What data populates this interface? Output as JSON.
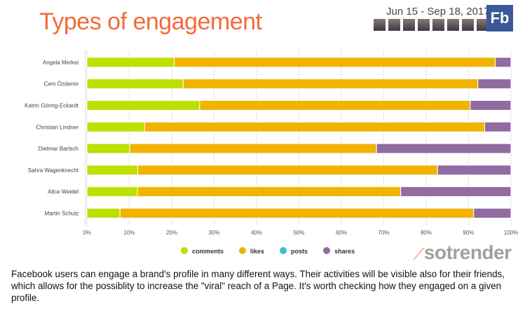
{
  "header": {
    "title": "Types of engagement",
    "date_range": "Jun 15 - Sep 18, 2017",
    "platform_badge": "Fb"
  },
  "colors": {
    "comments": "#bfdf00",
    "likes": "#f0b400",
    "posts": "#3fbfc9",
    "shares": "#916ba1",
    "title": "#f26b3a"
  },
  "chart_data": {
    "type": "bar",
    "orientation": "horizontal",
    "stacked": "percent",
    "categories": [
      "Angela Merkel",
      "Cem Özdemir",
      "Katrin Göring-Eckardt",
      "Christian Lindner",
      "Dietmar Bartsch",
      "Sahra Wagenknecht",
      "Alice Weidel",
      "Martin Schulz"
    ],
    "series": [
      {
        "name": "comments",
        "values": [
          20.6,
          22.7,
          26.6,
          13.6,
          10.1,
          12.0,
          11.9,
          7.8
        ]
      },
      {
        "name": "likes",
        "values": [
          75.7,
          69.5,
          63.8,
          80.2,
          58.2,
          70.7,
          62.1,
          83.4
        ]
      },
      {
        "name": "posts",
        "values": [
          0,
          0,
          0,
          0,
          0,
          0,
          0,
          0
        ]
      },
      {
        "name": "shares",
        "values": [
          3.7,
          7.8,
          9.6,
          6.2,
          31.7,
          17.3,
          26.0,
          8.8
        ]
      }
    ],
    "xticks": [
      "0%",
      "10%",
      "20%",
      "30%",
      "40%",
      "50%",
      "60%",
      "70%",
      "80%",
      "90%",
      "100%"
    ],
    "xlim": [
      0,
      100
    ],
    "grid": true,
    "legend": "bottom"
  },
  "logo": {
    "text": "sotrender"
  },
  "description": "Facebook users can engage a brand's profile in many different ways. Their activities will be visible also for their friends, which allows for the possiblity to increase the \"viral\" reach of a Page. It's worth checking how they engaged on a given profile."
}
